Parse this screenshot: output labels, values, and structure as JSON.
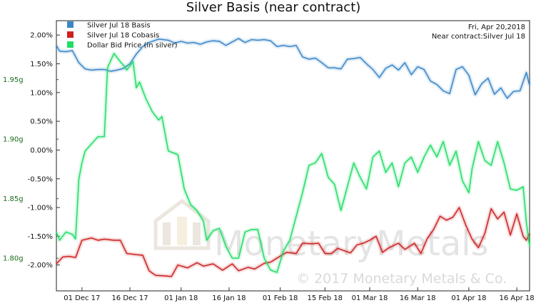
{
  "chart_data": {
    "type": "line",
    "title": "Silver Basis (near contract)",
    "annotation_lines": [
      "Fri, Apr 20,2018",
      "Near contract:Silver Jul 18"
    ],
    "watermark": {
      "brand": "MonetaryMetals",
      "copyright": "© 2017 Monetary Metals & Co."
    },
    "x_ticks": [
      {
        "date": "2017-12-01",
        "label": "01 Dec 17"
      },
      {
        "date": "2017-12-16",
        "label": "16 Dec 17"
      },
      {
        "date": "2018-01-01",
        "label": "01 Jan 18"
      },
      {
        "date": "2018-01-16",
        "label": "16 Jan 18"
      },
      {
        "date": "2018-02-01",
        "label": "01 Feb 18"
      },
      {
        "date": "2018-02-15",
        "label": "15 Feb 18"
      },
      {
        "date": "2018-03-01",
        "label": "01 Mar 18"
      },
      {
        "date": "2018-03-16",
        "label": "16 Mar 18"
      },
      {
        "date": "2018-04-01",
        "label": "01 Apr 18"
      },
      {
        "date": "2018-04-16",
        "label": "16 Apr 18"
      }
    ],
    "x_range": [
      "2017-11-23",
      "2018-04-20"
    ],
    "left_axis": {
      "range": [
        -2.45,
        2.25
      ],
      "ticks": [
        2.0,
        1.5,
        1.0,
        0.5,
        0.0,
        -0.5,
        -1.0,
        -1.5,
        -2.0
      ],
      "tick_labels": [
        "2.00%",
        "1.50%",
        "1.00%",
        "0.50%",
        "0.00%",
        "-0.50%",
        "-1.00%",
        "-1.50%",
        "-2.00%"
      ]
    },
    "right_axis": {
      "range": [
        1.7725,
        1.9995
      ],
      "ticks": [
        1.95,
        1.9,
        1.85,
        1.8
      ],
      "tick_labels": [
        "1.95g",
        "1.90g",
        "1.85g",
        "1.80g"
      ],
      "color": "#1a6b1a"
    },
    "series": [
      {
        "name": "Silver Jul 18 Basis",
        "color": "#3a86c8",
        "axis": "left",
        "points": [
          [
            "2017-11-23",
            1.82
          ],
          [
            "2017-11-24",
            1.72
          ],
          [
            "2017-11-26",
            1.71
          ],
          [
            "2017-11-28",
            1.73
          ],
          [
            "2017-11-30",
            1.52
          ],
          [
            "2017-12-02",
            1.41
          ],
          [
            "2017-12-04",
            1.39
          ],
          [
            "2017-12-06",
            1.4
          ],
          [
            "2017-12-08",
            1.4
          ],
          [
            "2017-12-10",
            1.37
          ],
          [
            "2017-12-12",
            1.39
          ],
          [
            "2017-12-14",
            1.42
          ],
          [
            "2017-12-16",
            1.5
          ],
          [
            "2017-12-18",
            1.67
          ],
          [
            "2017-12-20",
            1.8
          ],
          [
            "2017-12-22",
            1.87
          ],
          [
            "2017-12-25",
            1.93
          ],
          [
            "2017-12-28",
            1.91
          ],
          [
            "2017-12-30",
            1.86
          ],
          [
            "2018-01-01",
            1.89
          ],
          [
            "2018-01-03",
            1.86
          ],
          [
            "2018-01-05",
            1.87
          ],
          [
            "2018-01-07",
            1.84
          ],
          [
            "2018-01-09",
            1.88
          ],
          [
            "2018-01-11",
            1.9
          ],
          [
            "2018-01-13",
            1.89
          ],
          [
            "2018-01-15",
            1.82
          ],
          [
            "2018-01-17",
            1.88
          ],
          [
            "2018-01-19",
            1.94
          ],
          [
            "2018-01-21",
            1.87
          ],
          [
            "2018-01-23",
            1.92
          ],
          [
            "2018-01-25",
            1.91
          ],
          [
            "2018-01-27",
            1.92
          ],
          [
            "2018-01-29",
            1.9
          ],
          [
            "2018-01-31",
            1.8
          ],
          [
            "2018-02-02",
            1.82
          ],
          [
            "2018-02-04",
            1.8
          ],
          [
            "2018-02-06",
            1.82
          ],
          [
            "2018-02-08",
            1.62
          ],
          [
            "2018-02-10",
            1.58
          ],
          [
            "2018-02-12",
            1.6
          ],
          [
            "2018-02-14",
            1.52
          ],
          [
            "2018-02-16",
            1.43
          ],
          [
            "2018-02-18",
            1.43
          ],
          [
            "2018-02-20",
            1.41
          ],
          [
            "2018-02-22",
            1.58
          ],
          [
            "2018-02-24",
            1.59
          ],
          [
            "2018-02-26",
            1.61
          ],
          [
            "2018-02-28",
            1.5
          ],
          [
            "2018-03-02",
            1.4
          ],
          [
            "2018-03-04",
            1.26
          ],
          [
            "2018-03-06",
            1.42
          ],
          [
            "2018-03-08",
            1.48
          ],
          [
            "2018-03-10",
            1.39
          ],
          [
            "2018-03-12",
            1.52
          ],
          [
            "2018-03-14",
            1.31
          ],
          [
            "2018-03-16",
            1.45
          ],
          [
            "2018-03-18",
            1.4
          ],
          [
            "2018-03-20",
            1.2
          ],
          [
            "2018-03-22",
            1.14
          ],
          [
            "2018-03-24",
            1.03
          ],
          [
            "2018-03-26",
            0.98
          ],
          [
            "2018-03-28",
            1.4
          ],
          [
            "2018-03-30",
            1.45
          ],
          [
            "2018-04-01",
            1.3
          ],
          [
            "2018-04-03",
            0.96
          ],
          [
            "2018-04-05",
            1.15
          ],
          [
            "2018-04-07",
            1.25
          ],
          [
            "2018-04-09",
            0.97
          ],
          [
            "2018-04-11",
            1.08
          ],
          [
            "2018-04-13",
            0.9
          ],
          [
            "2018-04-15",
            1.02
          ],
          [
            "2018-04-17",
            1.03
          ],
          [
            "2018-04-19",
            1.35
          ],
          [
            "2018-04-20",
            1.12
          ]
        ]
      },
      {
        "name": "Silver Jul 18 Cobasis",
        "color": "#cc2222",
        "axis": "left",
        "points": [
          [
            "2017-11-23",
            -1.98
          ],
          [
            "2017-11-25",
            -1.86
          ],
          [
            "2017-11-27",
            -1.85
          ],
          [
            "2017-11-29",
            -1.87
          ],
          [
            "2017-12-01",
            -1.57
          ],
          [
            "2017-12-04",
            -1.53
          ],
          [
            "2017-12-06",
            -1.57
          ],
          [
            "2017-12-08",
            -1.55
          ],
          [
            "2017-12-11",
            -1.57
          ],
          [
            "2017-12-13",
            -1.57
          ],
          [
            "2017-12-15",
            -1.8
          ],
          [
            "2017-12-18",
            -1.82
          ],
          [
            "2017-12-20",
            -1.83
          ],
          [
            "2017-12-22",
            -2.1
          ],
          [
            "2017-12-24",
            -2.18
          ],
          [
            "2017-12-27",
            -2.19
          ],
          [
            "2017-12-29",
            -2.2
          ],
          [
            "2017-12-31",
            -2.0
          ],
          [
            "2018-01-03",
            -2.05
          ],
          [
            "2018-01-06",
            -1.96
          ],
          [
            "2018-01-08",
            -2.02
          ],
          [
            "2018-01-11",
            -1.98
          ],
          [
            "2018-01-14",
            -2.09
          ],
          [
            "2018-01-17",
            -1.98
          ],
          [
            "2018-01-19",
            -2.1
          ],
          [
            "2018-01-22",
            -2.04
          ],
          [
            "2018-01-24",
            -2.07
          ],
          [
            "2018-01-27",
            -1.97
          ],
          [
            "2018-01-29",
            -1.95
          ],
          [
            "2018-01-31",
            -1.88
          ],
          [
            "2018-02-03",
            -1.78
          ],
          [
            "2018-02-06",
            -1.8
          ],
          [
            "2018-02-08",
            -1.62
          ],
          [
            "2018-02-11",
            -1.63
          ],
          [
            "2018-02-13",
            -1.62
          ],
          [
            "2018-02-15",
            -1.8
          ],
          [
            "2018-02-17",
            -1.8
          ],
          [
            "2018-02-19",
            -1.71
          ],
          [
            "2018-02-21",
            -1.75
          ],
          [
            "2018-02-23",
            -1.79
          ],
          [
            "2018-02-25",
            -1.65
          ],
          [
            "2018-02-27",
            -1.62
          ],
          [
            "2018-03-01",
            -1.57
          ],
          [
            "2018-03-03",
            -1.5
          ],
          [
            "2018-03-05",
            -1.78
          ],
          [
            "2018-03-07",
            -1.7
          ],
          [
            "2018-03-10",
            -1.62
          ],
          [
            "2018-03-12",
            -1.73
          ],
          [
            "2018-03-15",
            -1.62
          ],
          [
            "2018-03-17",
            -1.8
          ],
          [
            "2018-03-19",
            -1.54
          ],
          [
            "2018-03-21",
            -1.38
          ],
          [
            "2018-03-23",
            -1.15
          ],
          [
            "2018-03-25",
            -1.22
          ],
          [
            "2018-03-27",
            -1.17
          ],
          [
            "2018-03-29",
            -1.0
          ],
          [
            "2018-03-31",
            -1.3
          ],
          [
            "2018-04-02",
            -1.55
          ],
          [
            "2018-04-04",
            -1.7
          ],
          [
            "2018-04-06",
            -1.45
          ],
          [
            "2018-04-08",
            -1.02
          ],
          [
            "2018-04-10",
            -1.2
          ],
          [
            "2018-04-12",
            -1.08
          ],
          [
            "2018-04-14",
            -1.48
          ],
          [
            "2018-04-16",
            -1.11
          ],
          [
            "2018-04-18",
            -1.5
          ],
          [
            "2018-04-19",
            -1.57
          ],
          [
            "2018-04-20",
            -1.45
          ]
        ]
      },
      {
        "name": "Dollar Bid Price (in silver)",
        "color": "#22dd66",
        "axis": "right",
        "points": [
          [
            "2017-11-23",
            1.822
          ],
          [
            "2017-11-24",
            1.815
          ],
          [
            "2017-11-26",
            1.822
          ],
          [
            "2017-11-28",
            1.82
          ],
          [
            "2017-11-29",
            1.816
          ],
          [
            "2017-11-30",
            1.866
          ],
          [
            "2017-12-01",
            1.88
          ],
          [
            "2017-12-02",
            1.89
          ],
          [
            "2017-12-04",
            1.896
          ],
          [
            "2017-12-06",
            1.902
          ],
          [
            "2017-12-08",
            1.902
          ],
          [
            "2017-12-09",
            1.96
          ],
          [
            "2017-12-11",
            1.972
          ],
          [
            "2017-12-13",
            1.965
          ],
          [
            "2017-12-14",
            1.962
          ],
          [
            "2017-12-15",
            1.958
          ],
          [
            "2017-12-17",
            1.965
          ],
          [
            "2017-12-18",
            1.943
          ],
          [
            "2017-12-19",
            1.948
          ],
          [
            "2017-12-21",
            1.934
          ],
          [
            "2017-12-23",
            1.923
          ],
          [
            "2017-12-25",
            1.916
          ],
          [
            "2017-12-26",
            1.919
          ],
          [
            "2017-12-28",
            1.89
          ],
          [
            "2017-12-31",
            1.887
          ],
          [
            "2018-01-02",
            1.858
          ],
          [
            "2018-01-04",
            1.845
          ],
          [
            "2018-01-06",
            1.84
          ],
          [
            "2018-01-08",
            1.831
          ],
          [
            "2018-01-09",
            1.815
          ],
          [
            "2018-01-11",
            1.823
          ],
          [
            "2018-01-13",
            1.825
          ],
          [
            "2018-01-15",
            1.81
          ],
          [
            "2018-01-17",
            1.8
          ],
          [
            "2018-01-19",
            1.8
          ],
          [
            "2018-01-21",
            1.822
          ],
          [
            "2018-01-23",
            1.824
          ],
          [
            "2018-01-25",
            1.824
          ],
          [
            "2018-01-27",
            1.8
          ],
          [
            "2018-01-29",
            1.79
          ],
          [
            "2018-01-31",
            1.788
          ],
          [
            "2018-02-02",
            1.806
          ],
          [
            "2018-02-04",
            1.815
          ],
          [
            "2018-02-06",
            1.835
          ],
          [
            "2018-02-08",
            1.855
          ],
          [
            "2018-02-10",
            1.878
          ],
          [
            "2018-02-12",
            1.88
          ],
          [
            "2018-02-14",
            1.888
          ],
          [
            "2018-02-16",
            1.868
          ],
          [
            "2018-02-18",
            1.862
          ],
          [
            "2018-02-20",
            1.84
          ],
          [
            "2018-02-22",
            1.86
          ],
          [
            "2018-02-24",
            1.88
          ],
          [
            "2018-02-26",
            1.868
          ],
          [
            "2018-02-28",
            1.858
          ],
          [
            "2018-03-02",
            1.885
          ],
          [
            "2018-03-04",
            1.89
          ],
          [
            "2018-03-06",
            1.872
          ],
          [
            "2018-03-08",
            1.88
          ],
          [
            "2018-03-10",
            1.86
          ],
          [
            "2018-03-12",
            1.88
          ],
          [
            "2018-03-14",
            1.885
          ],
          [
            "2018-03-16",
            1.872
          ],
          [
            "2018-03-18",
            1.885
          ],
          [
            "2018-03-20",
            1.895
          ],
          [
            "2018-03-22",
            1.885
          ],
          [
            "2018-03-24",
            1.898
          ],
          [
            "2018-03-26",
            1.878
          ],
          [
            "2018-03-28",
            1.89
          ],
          [
            "2018-03-30",
            1.865
          ],
          [
            "2018-04-01",
            1.855
          ],
          [
            "2018-04-02",
            1.875
          ],
          [
            "2018-04-04",
            1.898
          ],
          [
            "2018-04-06",
            1.882
          ],
          [
            "2018-04-08",
            1.878
          ],
          [
            "2018-04-10",
            1.898
          ],
          [
            "2018-04-12",
            1.88
          ],
          [
            "2018-04-14",
            1.858
          ],
          [
            "2018-04-16",
            1.857
          ],
          [
            "2018-04-18",
            1.86
          ],
          [
            "2018-04-19",
            1.83
          ],
          [
            "2018-04-20",
            1.81
          ]
        ]
      }
    ]
  }
}
